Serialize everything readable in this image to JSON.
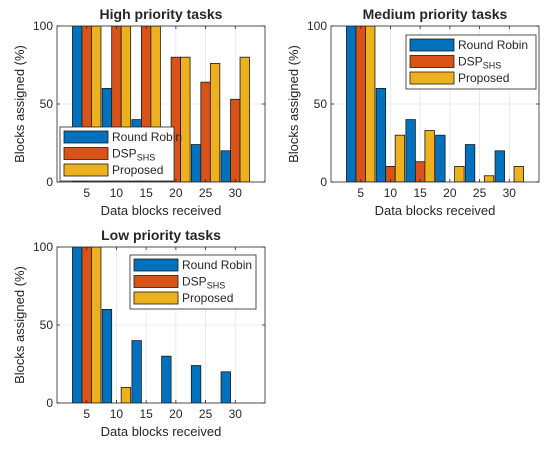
{
  "chart_data": [
    {
      "type": "bar",
      "title": "High priority tasks",
      "xlabel": "Data blocks received",
      "ylabel": "Blocks assigned (%)",
      "categories": [
        "5",
        "10",
        "15",
        "20",
        "25",
        "30"
      ],
      "x": [
        5,
        10,
        15,
        20,
        25,
        30
      ],
      "xticks": [
        "5",
        "10",
        "15",
        "20",
        "25",
        "30"
      ],
      "yticks": [
        "0",
        "50",
        "100"
      ],
      "xlim": [
        0,
        35
      ],
      "ylim": [
        0,
        100
      ],
      "grid": true,
      "legend_position": "bottom-left",
      "series": [
        {
          "name": "Round Robin",
          "values": [
            100,
            60,
            40,
            30,
            24,
            20
          ],
          "color": "#0072BD"
        },
        {
          "name": "DSP",
          "subscript": "SHS",
          "values": [
            100,
            100,
            100,
            80,
            64,
            53
          ],
          "color": "#D95319"
        },
        {
          "name": "Proposed",
          "values": [
            100,
            100,
            100,
            80,
            76,
            80
          ],
          "color": "#EDB120"
        }
      ]
    },
    {
      "type": "bar",
      "title": "Medium priority tasks",
      "xlabel": "Data blocks received",
      "ylabel": "Blocks assigned (%)",
      "categories": [
        "5",
        "10",
        "15",
        "20",
        "25",
        "30"
      ],
      "x": [
        5,
        10,
        15,
        20,
        25,
        30
      ],
      "xticks": [
        "5",
        "10",
        "15",
        "20",
        "25",
        "30"
      ],
      "yticks": [
        "0",
        "50",
        "100"
      ],
      "xlim": [
        0,
        35
      ],
      "ylim": [
        0,
        100
      ],
      "grid": true,
      "legend_position": "top-right",
      "series": [
        {
          "name": "Round Robin",
          "values": [
            100,
            60,
            40,
            30,
            24,
            20
          ],
          "color": "#0072BD"
        },
        {
          "name": "DSP",
          "subscript": "SHS",
          "values": [
            100,
            10,
            13,
            0,
            0,
            0
          ],
          "color": "#D95319"
        },
        {
          "name": "Proposed",
          "values": [
            100,
            30,
            33,
            10,
            4,
            10
          ],
          "color": "#EDB120"
        }
      ]
    },
    {
      "type": "bar",
      "title": "Low priority tasks",
      "xlabel": "Data blocks received",
      "ylabel": "Blocks assigned (%)",
      "categories": [
        "5",
        "10",
        "15",
        "20",
        "25",
        "30"
      ],
      "x": [
        5,
        10,
        15,
        20,
        25,
        30
      ],
      "xticks": [
        "5",
        "10",
        "15",
        "20",
        "25",
        "30"
      ],
      "yticks": [
        "0",
        "50",
        "100"
      ],
      "xlim": [
        0,
        35
      ],
      "ylim": [
        0,
        100
      ],
      "grid": true,
      "legend_position": "top-right",
      "series": [
        {
          "name": "Round Robin",
          "values": [
            100,
            60,
            40,
            30,
            24,
            20
          ],
          "color": "#0072BD"
        },
        {
          "name": "DSP",
          "subscript": "SHS",
          "values": [
            100,
            0,
            0,
            0,
            0,
            0
          ],
          "color": "#D95319"
        },
        {
          "name": "Proposed",
          "values": [
            100,
            10,
            0,
            0,
            0,
            0
          ],
          "color": "#EDB120"
        }
      ]
    }
  ]
}
